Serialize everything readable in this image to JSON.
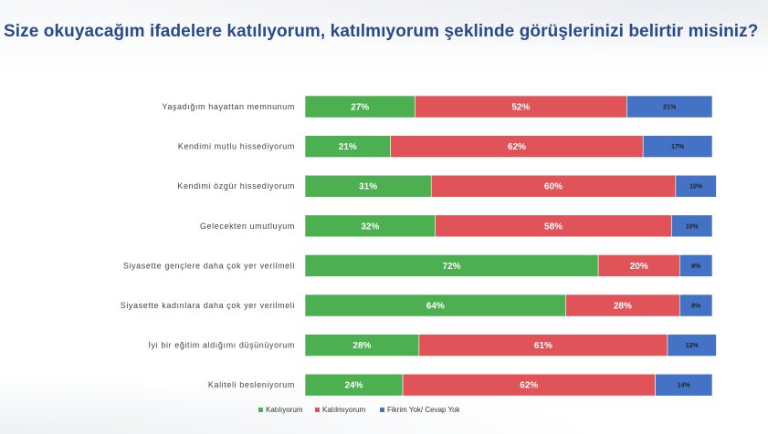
{
  "title": "Size okuyacağım ifadelere katılıyorum, katılmıyorum şeklinde görüşlerinizi belirtir misiniz?",
  "chart_data": {
    "type": "bar",
    "orientation": "horizontal",
    "stacked": true,
    "grid": false,
    "legend_position": "bottom",
    "categories": [
      "Yaşadığım hayattan memnunum",
      "Kendimi mutlu hissediyorum",
      "Kendimi özgür hissediyorum",
      "Gelecekten umutluyum",
      "Siyasette gençlere daha çok yer verilmeli",
      "Siyasette kadınlara daha çok yer verilmeli",
      "İyi bir eğitim aldığımı düşünüyorum",
      "Kaliteli besleniyorum"
    ],
    "series": [
      {
        "name": "Katılıyorum",
        "color": "#4caf50",
        "values": [
          27,
          21,
          31,
          32,
          72,
          64,
          28,
          24
        ]
      },
      {
        "name": "Katılmıyorum",
        "color": "#e05358",
        "values": [
          52,
          62,
          60,
          58,
          20,
          28,
          61,
          62
        ]
      },
      {
        "name": "Fikrim Yok/ Cevap Yok",
        "color": "#4472c4",
        "values": [
          21,
          17,
          10,
          10,
          8,
          8,
          12,
          14
        ]
      }
    ],
    "value_labels": [
      [
        "27%",
        "52%",
        "21%"
      ],
      [
        "21%",
        "62%",
        "17%"
      ],
      [
        "31%",
        "60%",
        "10%"
      ],
      [
        "32%",
        "58%",
        "10%"
      ],
      [
        "72%",
        "20%",
        "8%"
      ],
      [
        "64%",
        "28%",
        "8%"
      ],
      [
        "28%",
        "61%",
        "12%"
      ],
      [
        "24%",
        "62%",
        "14%"
      ]
    ],
    "xlim": [
      0,
      100
    ]
  }
}
